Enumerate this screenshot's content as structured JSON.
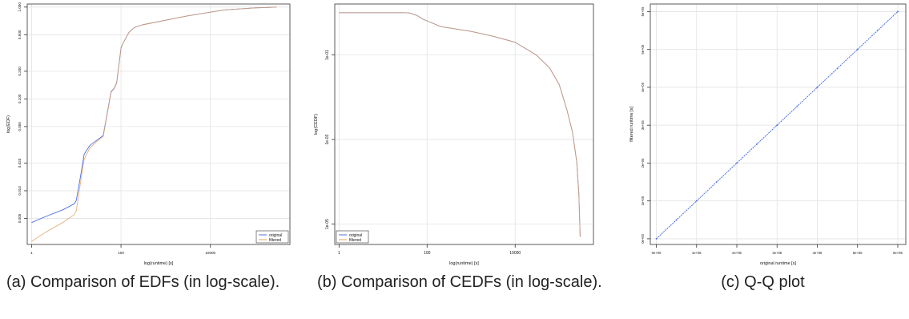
{
  "captions": {
    "a": "(a) Comparison of EDFs (in log-scale).",
    "b": "(b) Comparison of CEDFs (in log-scale).",
    "c": "(c) Q-Q plot"
  },
  "colors": {
    "original": "#4a6fe3",
    "filtered": "#e0a46a",
    "grid": "#e3e3e3",
    "axis": "#333333"
  },
  "chart_data": [
    {
      "id": "edf",
      "type": "line",
      "xlabel": "log(runtime) [s]",
      "ylabel": "log(EDF)",
      "xscale": "log",
      "yscale": "log",
      "xlim": [
        0.8,
        600000
      ],
      "ylim": [
        0.0026,
        1.08
      ],
      "xticks": [
        1,
        100,
        10000
      ],
      "xticklabels": [
        "1",
        "100",
        "10000"
      ],
      "yticks": [
        0.005,
        0.01,
        0.02,
        0.05,
        0.1,
        0.2,
        0.5,
        1.0
      ],
      "yticklabels": [
        "0.005",
        "0.010",
        "0.020",
        "0.050",
        "0.100",
        "0.200",
        "0.500",
        "1.000"
      ],
      "legend": {
        "position": "bottom-right",
        "entries": [
          "original",
          "filtered"
        ]
      },
      "grid": true,
      "series": [
        {
          "name": "original",
          "x": [
            1,
            2,
            5,
            9,
            10,
            12,
            15,
            20,
            30,
            40,
            60,
            70,
            80,
            100,
            110,
            150,
            200,
            300,
            1000,
            3000,
            10000,
            20000,
            50000,
            100000,
            200000,
            300000
          ],
          "y": [
            0.0045,
            0.0052,
            0.0062,
            0.0072,
            0.0078,
            0.013,
            0.025,
            0.031,
            0.036,
            0.04,
            0.12,
            0.13,
            0.15,
            0.36,
            0.4,
            0.53,
            0.6,
            0.64,
            0.72,
            0.8,
            0.88,
            0.93,
            0.96,
            0.98,
            0.99,
            1.0
          ]
        },
        {
          "name": "filtered",
          "x": [
            1,
            2,
            5,
            9,
            10,
            12,
            15,
            20,
            30,
            40,
            60,
            70,
            80,
            100,
            110,
            150,
            200,
            300,
            1000,
            3000,
            10000,
            20000,
            50000,
            100000,
            200000,
            300000
          ],
          "y": [
            0.0028,
            0.0035,
            0.0045,
            0.0055,
            0.006,
            0.011,
            0.022,
            0.029,
            0.035,
            0.039,
            0.118,
            0.129,
            0.148,
            0.355,
            0.4,
            0.53,
            0.6,
            0.64,
            0.72,
            0.8,
            0.88,
            0.93,
            0.96,
            0.98,
            0.99,
            1.0
          ]
        }
      ]
    },
    {
      "id": "cedf",
      "type": "line",
      "xlabel": "log(runtime) [s]",
      "ylabel": "log(CEDF)",
      "xscale": "log",
      "yscale": "log",
      "xlim": [
        0.8,
        600000
      ],
      "ylim": [
        3.3e-06,
        1.6
      ],
      "xticks": [
        1,
        100,
        10000
      ],
      "xticklabels": [
        "1",
        "100",
        "10000"
      ],
      "yticks": [
        1e-05,
        0.001,
        0.1
      ],
      "yticklabels": [
        "1e-05",
        "1e-03",
        "1e-01"
      ],
      "legend": {
        "position": "bottom-left",
        "entries": [
          "original",
          "filtered"
        ]
      },
      "grid": true,
      "series": [
        {
          "name": "original",
          "x": [
            1,
            30,
            40,
            60,
            80,
            100,
            200,
            1000,
            3000,
            10000,
            30000,
            60000,
            100000,
            150000,
            200000,
            250000,
            280000,
            300000
          ],
          "y": [
            1,
            1,
            0.98,
            0.85,
            0.7,
            0.64,
            0.47,
            0.36,
            0.28,
            0.2,
            0.1,
            0.05,
            0.02,
            0.005,
            0.0015,
            0.0003,
            5e-05,
            5e-06
          ]
        },
        {
          "name": "filtered",
          "x": [
            1,
            30,
            40,
            60,
            80,
            100,
            200,
            1000,
            3000,
            10000,
            30000,
            60000,
            100000,
            150000,
            200000,
            250000,
            280000,
            300000
          ],
          "y": [
            1,
            1,
            0.98,
            0.85,
            0.7,
            0.64,
            0.47,
            0.36,
            0.28,
            0.2,
            0.1,
            0.05,
            0.02,
            0.005,
            0.0015,
            0.0003,
            5e-05,
            5e-06
          ]
        }
      ]
    },
    {
      "id": "qq",
      "type": "scatter",
      "xlabel": "original runtime [s]",
      "ylabel": "filtered runtime [s]",
      "xlim": [
        -15000,
        620000
      ],
      "ylim": [
        -15000,
        620000
      ],
      "xticks": [
        0,
        100000,
        200000,
        300000,
        400000,
        500000,
        600000
      ],
      "xticklabels": [
        "0e+00",
        "1e+05",
        "2e+05",
        "3e+05",
        "4e+05",
        "5e+05",
        "6e+05"
      ],
      "yticks": [
        0,
        100000,
        200000,
        300000,
        400000,
        500000,
        600000
      ],
      "yticklabels": [
        "0e+00",
        "1e+05",
        "2e+05",
        "3e+05",
        "4e+05",
        "5e+05",
        "6e+05"
      ],
      "grid": true,
      "series": [
        {
          "name": "",
          "x": [
            0,
            50000,
            100000,
            150000,
            200000,
            250000,
            300000,
            350000,
            400000,
            450000,
            500000,
            550000,
            600000
          ],
          "y": [
            0,
            50000,
            100000,
            150000,
            200000,
            250000,
            300000,
            350000,
            400000,
            450000,
            500000,
            550000,
            600000
          ]
        }
      ]
    }
  ]
}
